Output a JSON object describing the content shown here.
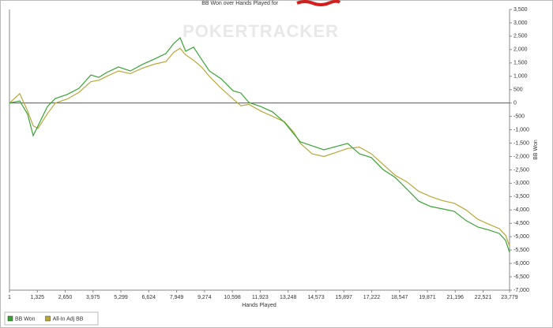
{
  "chart_data": {
    "type": "line",
    "title": "BB Won over Hands Played for",
    "watermark": "POKERTRACKER",
    "x_label": "Hands Played",
    "y_label": "BB Won",
    "x": [
      1,
      489,
      865,
      1128,
      1353,
      1804,
      2179,
      2743,
      3306,
      3870,
      4245,
      4621,
      5184,
      5748,
      6311,
      6875,
      7438,
      7813,
      8114,
      8377,
      8752,
      9128,
      9504,
      10067,
      10630,
      11006,
      11382,
      11945,
      12508,
      13072,
      13523,
      13823,
      14387,
      14950,
      15514,
      16077,
      16641,
      17204,
      17767,
      18331,
      18894,
      19458,
      20021,
      20585,
      21148,
      21712,
      22275,
      22839,
      23289,
      23590,
      23779
    ],
    "series": [
      {
        "name": "BB Won",
        "color": "#3aa335",
        "values": [
          0,
          80,
          -420,
          -1220,
          -860,
          -130,
          170,
          320,
          550,
          1050,
          960,
          1140,
          1350,
          1200,
          1440,
          1640,
          1850,
          2230,
          2440,
          1940,
          2090,
          1640,
          1200,
          905,
          460,
          370,
          20,
          -130,
          -330,
          -720,
          -1160,
          -1450,
          -1600,
          -1750,
          -1630,
          -1510,
          -1900,
          -2040,
          -2490,
          -2780,
          -3220,
          -3670,
          -3870,
          -3960,
          -4050,
          -4400,
          -4640,
          -4760,
          -4880,
          -5140,
          -5580
        ]
      },
      {
        "name": "All-In Adj BB",
        "color": "#b8a83a",
        "values": [
          0,
          350,
          -300,
          -850,
          -950,
          -400,
          0,
          150,
          400,
          800,
          850,
          1000,
          1200,
          1100,
          1300,
          1450,
          1550,
          1900,
          2050,
          1800,
          1600,
          1350,
          1000,
          550,
          150,
          -100,
          -50,
          -300,
          -500,
          -700,
          -1100,
          -1500,
          -1900,
          -2000,
          -1850,
          -1700,
          -1650,
          -1900,
          -2300,
          -2700,
          -2950,
          -3300,
          -3500,
          -3650,
          -3750,
          -4000,
          -4350,
          -4550,
          -4700,
          -4950,
          -5350
        ]
      }
    ],
    "xlim": [
      1,
      23779
    ],
    "xticks": [
      1,
      {
        "value": 1325,
        "label": "1,325"
      },
      {
        "value": 2650,
        "label": "2,650"
      },
      {
        "value": 3975,
        "label": "3,975"
      },
      {
        "value": 5299,
        "label": "5,299"
      },
      {
        "value": 6624,
        "label": "6,624"
      },
      {
        "value": 7949,
        "label": "7,949"
      },
      {
        "value": 9274,
        "label": "9,274"
      },
      {
        "value": 10598,
        "label": "10,598"
      },
      {
        "value": 11923,
        "label": "11,923"
      },
      {
        "value": 13248,
        "label": "13,248"
      },
      {
        "value": 14573,
        "label": "14,573"
      },
      {
        "value": 15897,
        "label": "15,897"
      },
      {
        "value": 17222,
        "label": "17,222"
      },
      {
        "value": 18547,
        "label": "18,547"
      },
      {
        "value": 19871,
        "label": "19,871"
      },
      {
        "value": 21196,
        "label": "21,196"
      },
      {
        "value": 22521,
        "label": "22,521"
      },
      {
        "value": 23779,
        "label": "23,779"
      }
    ],
    "ylim": [
      -7000,
      3500
    ],
    "yticks": [
      {
        "value": 3500,
        "label": "3,500"
      },
      {
        "value": 3000,
        "label": "3,000"
      },
      {
        "value": 2500,
        "label": "2,500"
      },
      {
        "value": 2000,
        "label": "2,000"
      },
      {
        "value": 1500,
        "label": "1,500"
      },
      {
        "value": 1000,
        "label": "1,000"
      },
      500,
      0,
      -500,
      {
        "value": -1000,
        "label": "-1,000"
      },
      {
        "value": -1500,
        "label": "-1,500"
      },
      {
        "value": -2000,
        "label": "-2,000"
      },
      {
        "value": -2500,
        "label": "-2,500"
      },
      {
        "value": -3000,
        "label": "-3,000"
      },
      {
        "value": -3500,
        "label": "-3,500"
      },
      {
        "value": -4000,
        "label": "-4,000"
      },
      {
        "value": -4500,
        "label": "-4,500"
      },
      {
        "value": -5000,
        "label": "-5,000"
      },
      {
        "value": -5500,
        "label": "-5,500"
      },
      {
        "value": -6000,
        "label": "-6,000"
      },
      {
        "value": -6500,
        "label": "-6,500"
      },
      {
        "value": -7000,
        "label": "-7,000"
      }
    ],
    "grid": false,
    "legend": "bottom-left"
  }
}
